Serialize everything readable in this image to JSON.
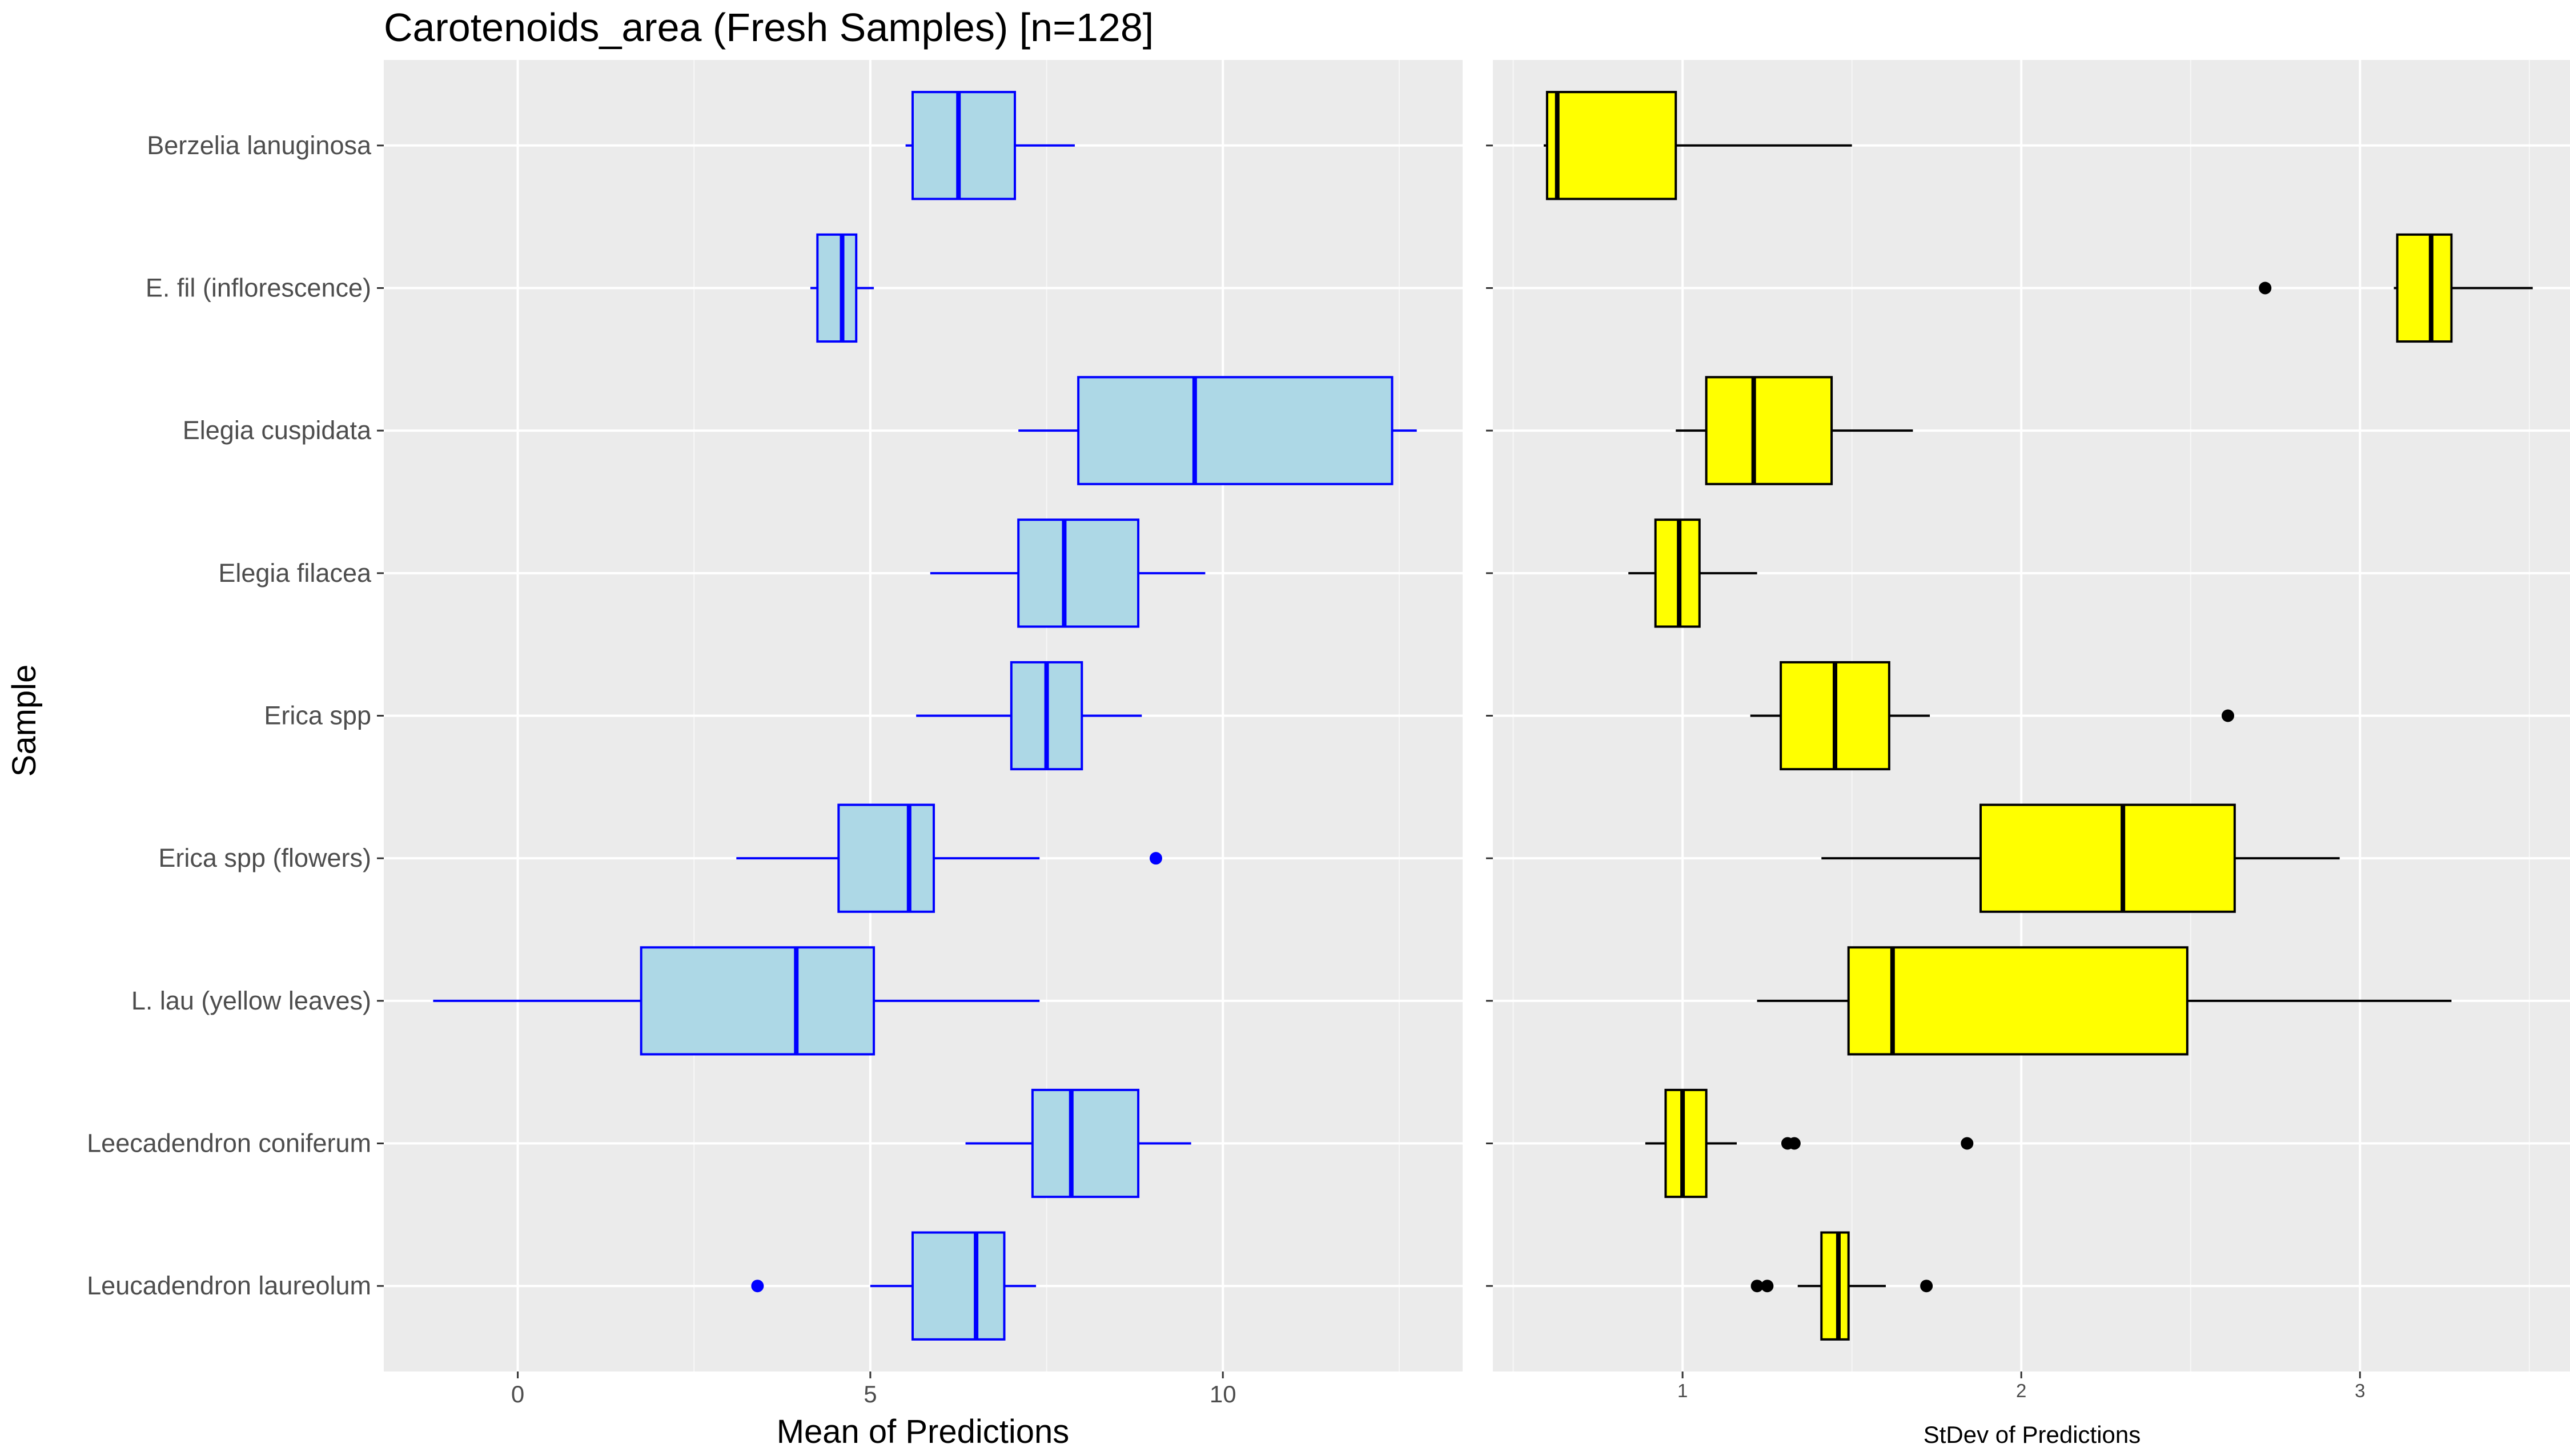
{
  "chart_data": [
    {
      "type": "boxplot",
      "title": "Carotenoids_area (Fresh Samples) [n=128]",
      "xlabel": "Mean of Predictions",
      "ylabel": "Sample",
      "xlim": [
        -1.9,
        13.4
      ],
      "xticks": [
        0,
        5,
        10
      ],
      "grid": true,
      "fill_color": "#add8e6",
      "line_color": "#0000ff",
      "categories": [
        "Berzelia lanuginosa",
        "E. fil (inflorescence)",
        "Elegia cuspidata",
        "Elegia filacea",
        "Erica spp",
        "Erica spp (flowers)",
        "L. lau (yellow leaves)",
        "Leecadendron coniferum",
        "Leucadendron laureolum"
      ],
      "boxes": [
        {
          "whisker_low": 5.5,
          "q1": 5.6,
          "median": 6.25,
          "q3": 7.05,
          "whisker_high": 7.9,
          "outliers": []
        },
        {
          "whisker_low": 4.15,
          "q1": 4.25,
          "median": 4.6,
          "q3": 4.8,
          "whisker_high": 5.05,
          "outliers": []
        },
        {
          "whisker_low": 7.1,
          "q1": 7.95,
          "median": 9.6,
          "q3": 12.4,
          "whisker_high": 12.75,
          "outliers": []
        },
        {
          "whisker_low": 5.85,
          "q1": 7.1,
          "median": 7.75,
          "q3": 8.8,
          "whisker_high": 9.75,
          "outliers": []
        },
        {
          "whisker_low": 5.65,
          "q1": 7.0,
          "median": 7.5,
          "q3": 8.0,
          "whisker_high": 8.85,
          "outliers": []
        },
        {
          "whisker_low": 3.1,
          "q1": 4.55,
          "median": 5.55,
          "q3": 5.9,
          "whisker_high": 7.4,
          "outliers": [
            9.05
          ]
        },
        {
          "whisker_low": -1.2,
          "q1": 1.75,
          "median": 3.95,
          "q3": 5.05,
          "whisker_high": 7.4,
          "outliers": []
        },
        {
          "whisker_low": 6.35,
          "q1": 7.3,
          "median": 7.85,
          "q3": 8.8,
          "whisker_high": 9.55,
          "outliers": []
        },
        {
          "whisker_low": 5.0,
          "q1": 5.6,
          "median": 6.5,
          "q3": 6.9,
          "whisker_high": 7.35,
          "outliers": [
            3.4
          ]
        }
      ]
    },
    {
      "type": "boxplot",
      "xlabel": "StDev of Predictions",
      "ylabel": "",
      "xlim": [
        0.44,
        3.62
      ],
      "xticks": [
        1,
        2,
        3
      ],
      "grid": true,
      "fill_color": "#ffff00",
      "line_color": "#000000",
      "categories": [
        "Berzelia lanuginosa",
        "E. fil (inflorescence)",
        "Elegia cuspidata",
        "Elegia filacea",
        "Erica spp",
        "Erica spp (flowers)",
        "L. lau (yellow leaves)",
        "Leecadendron coniferum",
        "Leucadendron laureolum"
      ],
      "boxes": [
        {
          "whisker_low": 0.59,
          "q1": 0.6,
          "median": 0.63,
          "q3": 0.98,
          "whisker_high": 1.5,
          "outliers": []
        },
        {
          "whisker_low": 3.1,
          "q1": 3.11,
          "median": 3.21,
          "q3": 3.27,
          "whisker_high": 3.51,
          "outliers": [
            2.72
          ]
        },
        {
          "whisker_low": 0.98,
          "q1": 1.07,
          "median": 1.21,
          "q3": 1.44,
          "whisker_high": 1.68,
          "outliers": []
        },
        {
          "whisker_low": 0.84,
          "q1": 0.92,
          "median": 0.99,
          "q3": 1.05,
          "whisker_high": 1.22,
          "outliers": []
        },
        {
          "whisker_low": 1.2,
          "q1": 1.29,
          "median": 1.45,
          "q3": 1.61,
          "whisker_high": 1.73,
          "outliers": [
            2.61
          ]
        },
        {
          "whisker_low": 1.41,
          "q1": 1.88,
          "median": 2.3,
          "q3": 2.63,
          "whisker_high": 2.94,
          "outliers": []
        },
        {
          "whisker_low": 1.22,
          "q1": 1.49,
          "median": 1.62,
          "q3": 2.49,
          "whisker_high": 3.27,
          "outliers": []
        },
        {
          "whisker_low": 0.89,
          "q1": 0.95,
          "median": 1.0,
          "q3": 1.07,
          "whisker_high": 1.16,
          "outliers": [
            1.31,
            1.33,
            1.84
          ]
        },
        {
          "whisker_low": 1.34,
          "q1": 1.41,
          "median": 1.46,
          "q3": 1.49,
          "whisker_high": 1.6,
          "outliers": [
            1.22,
            1.25,
            1.72
          ]
        }
      ]
    }
  ]
}
